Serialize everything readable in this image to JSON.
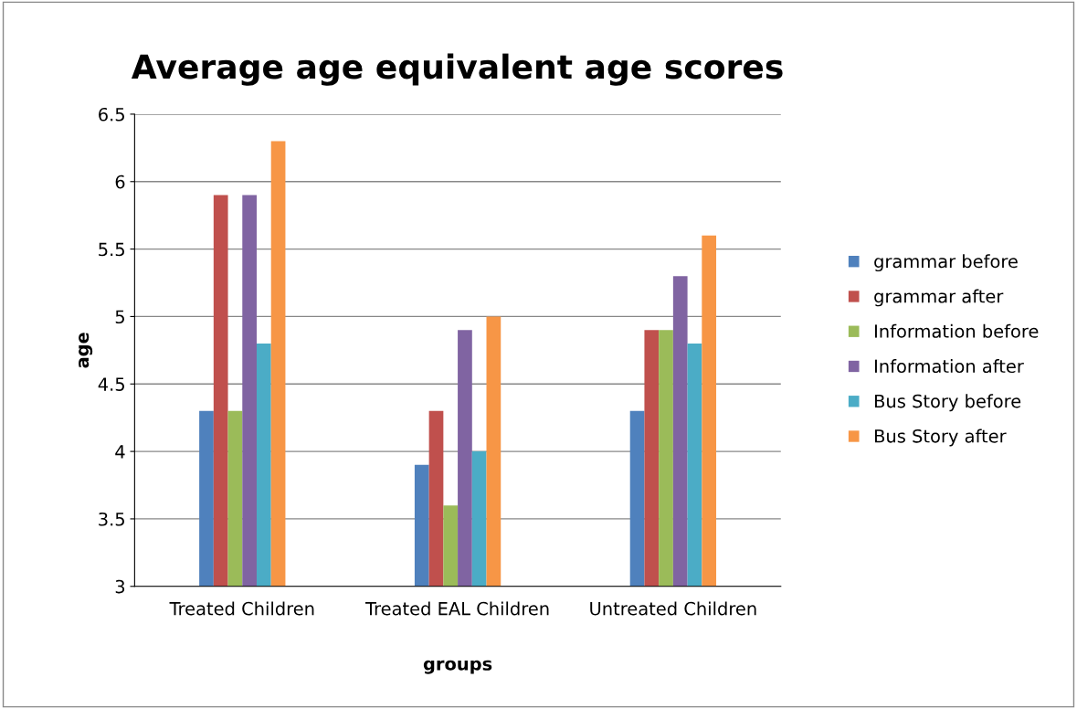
{
  "chart_data": {
    "type": "bar",
    "title": "Average age equivalent age scores",
    "xlabel": "groups",
    "ylabel": "age",
    "categories": [
      "Treated Children",
      "Treated EAL Children",
      "Untreated Children"
    ],
    "series": [
      {
        "name": "grammar before",
        "color": "#4f81bd",
        "values": [
          4.3,
          3.9,
          4.3
        ]
      },
      {
        "name": "grammar after",
        "color": "#c0504d",
        "values": [
          5.9,
          4.3,
          4.9
        ]
      },
      {
        "name": "Information before",
        "color": "#9bbb59",
        "values": [
          4.3,
          3.6,
          4.9
        ]
      },
      {
        "name": "Information after",
        "color": "#8064a2",
        "values": [
          5.9,
          4.9,
          5.3
        ]
      },
      {
        "name": "Bus Story before",
        "color": "#4bacc6",
        "values": [
          4.8,
          4.0,
          4.8
        ]
      },
      {
        "name": "Bus Story after",
        "color": "#f79646",
        "values": [
          6.3,
          5.0,
          5.6
        ]
      }
    ],
    "ylim": [
      3,
      6.5
    ],
    "yticks": [
      3,
      3.5,
      4,
      4.5,
      5,
      5.5,
      6,
      6.5
    ],
    "grid": "y",
    "legend": "right"
  }
}
